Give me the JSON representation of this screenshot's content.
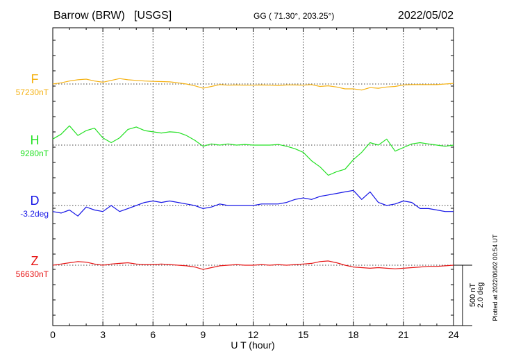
{
  "header": {
    "station": "Barrow (BRW)",
    "source": "[USGS]",
    "coords": "GG ( 71.30°, 203.25°)",
    "date": "2022/05/02"
  },
  "side_note": "Plotted at 2022/06/02 00:54 UT",
  "scale_bar": {
    "line1": "500 nT",
    "line2": "2.0 deg"
  },
  "chart_data": {
    "type": "line",
    "xlabel": "U T (hour)",
    "xlim": [
      0,
      24
    ],
    "xticks": [
      0,
      3,
      6,
      9,
      12,
      15,
      18,
      21,
      24
    ],
    "scale_nT_per_bar": 500,
    "series": [
      {
        "name": "F",
        "baseline_label": "57230nT",
        "color": "#f5b214",
        "x": [
          0,
          0.5,
          1,
          1.5,
          2,
          2.5,
          3,
          3.5,
          4,
          4.5,
          5,
          5.5,
          6,
          6.5,
          7,
          7.5,
          8,
          8.5,
          9,
          9.5,
          10,
          10.5,
          11,
          11.5,
          12,
          12.5,
          13,
          13.5,
          14,
          14.5,
          15,
          15.5,
          16,
          16.5,
          17,
          17.5,
          18,
          18.5,
          19,
          19.5,
          20,
          20.5,
          21,
          21.5,
          22,
          22.5,
          23,
          23.5,
          24
        ],
        "y": [
          0,
          10,
          25,
          35,
          40,
          25,
          15,
          30,
          45,
          35,
          30,
          25,
          22,
          20,
          18,
          10,
          0,
          -15,
          -35,
          -20,
          -5,
          -10,
          -8,
          -10,
          -10,
          -8,
          -10,
          -12,
          -8,
          -8,
          -10,
          -5,
          -20,
          -15,
          -25,
          -40,
          -40,
          -50,
          -30,
          -35,
          -25,
          -20,
          -8,
          -5,
          -5,
          -5,
          -5,
          0,
          5
        ]
      },
      {
        "name": "H",
        "baseline_label": "9280nT",
        "color": "#22e022",
        "x": [
          0,
          0.5,
          1,
          1.5,
          2,
          2.5,
          3,
          3.5,
          4,
          4.5,
          5,
          5.5,
          6,
          6.5,
          7,
          7.5,
          8,
          8.5,
          9,
          9.5,
          10,
          10.5,
          11,
          11.5,
          12,
          12.5,
          13,
          13.5,
          14,
          14.5,
          15,
          15.5,
          16,
          16.5,
          17,
          17.5,
          18,
          18.5,
          19,
          19.5,
          20,
          20.5,
          21,
          21.5,
          22,
          22.5,
          23,
          23.5,
          24
        ],
        "y": [
          50,
          90,
          160,
          80,
          120,
          140,
          60,
          20,
          60,
          130,
          150,
          120,
          110,
          100,
          110,
          105,
          80,
          40,
          -10,
          10,
          0,
          10,
          0,
          5,
          0,
          0,
          0,
          5,
          -10,
          -30,
          -60,
          -130,
          -180,
          -250,
          -220,
          -200,
          -120,
          -60,
          20,
          0,
          50,
          -50,
          -20,
          10,
          20,
          10,
          0,
          -10,
          0
        ]
      },
      {
        "name": "D",
        "baseline_label": "-3.2deg",
        "color": "#1414e6",
        "x": [
          0,
          0.5,
          1,
          1.5,
          2,
          2.5,
          3,
          3.5,
          4,
          4.5,
          5,
          5.5,
          6,
          6.5,
          7,
          7.5,
          8,
          8.5,
          9,
          9.5,
          10,
          10.5,
          11,
          11.5,
          12,
          12.5,
          13,
          13.5,
          14,
          14.5,
          15,
          15.5,
          16,
          16.5,
          17,
          17.5,
          18,
          18.5,
          19,
          19.5,
          20,
          20.5,
          21,
          21.5,
          22,
          22.5,
          23,
          23.5,
          24
        ],
        "y": [
          -0.2,
          -0.25,
          -0.15,
          -0.35,
          -0.05,
          -0.15,
          -0.2,
          0.0,
          -0.2,
          -0.1,
          0.0,
          0.1,
          0.15,
          0.1,
          0.15,
          0.1,
          0.05,
          0.0,
          -0.1,
          -0.05,
          0.05,
          0.0,
          0.0,
          0.0,
          0.0,
          0.05,
          0.05,
          0.05,
          0.1,
          0.2,
          0.25,
          0.2,
          0.3,
          0.35,
          0.4,
          0.45,
          0.5,
          0.2,
          0.45,
          0.1,
          0.0,
          0.05,
          0.15,
          0.1,
          -0.1,
          -0.1,
          -0.15,
          -0.2,
          -0.2
        ]
      },
      {
        "name": "Z",
        "baseline_label": "56630nT",
        "color": "#e61414",
        "x": [
          0,
          0.5,
          1,
          1.5,
          2,
          2.5,
          3,
          3.5,
          4,
          4.5,
          5,
          5.5,
          6,
          6.5,
          7,
          7.5,
          8,
          8.5,
          9,
          9.5,
          10,
          10.5,
          11,
          11.5,
          12,
          12.5,
          13,
          13.5,
          14,
          14.5,
          15,
          15.5,
          16,
          16.5,
          17,
          17.5,
          18,
          18.5,
          19,
          19.5,
          20,
          20.5,
          21,
          21.5,
          22,
          22.5,
          23,
          23.5,
          24
        ],
        "y": [
          0,
          10,
          20,
          30,
          25,
          10,
          0,
          10,
          15,
          20,
          10,
          5,
          5,
          10,
          5,
          0,
          -5,
          -15,
          -35,
          -20,
          -5,
          0,
          5,
          0,
          0,
          5,
          0,
          5,
          0,
          5,
          10,
          15,
          30,
          35,
          20,
          0,
          -15,
          -20,
          -25,
          -20,
          -25,
          -30,
          -25,
          -20,
          -15,
          -10,
          -10,
          -5,
          0
        ]
      }
    ]
  }
}
